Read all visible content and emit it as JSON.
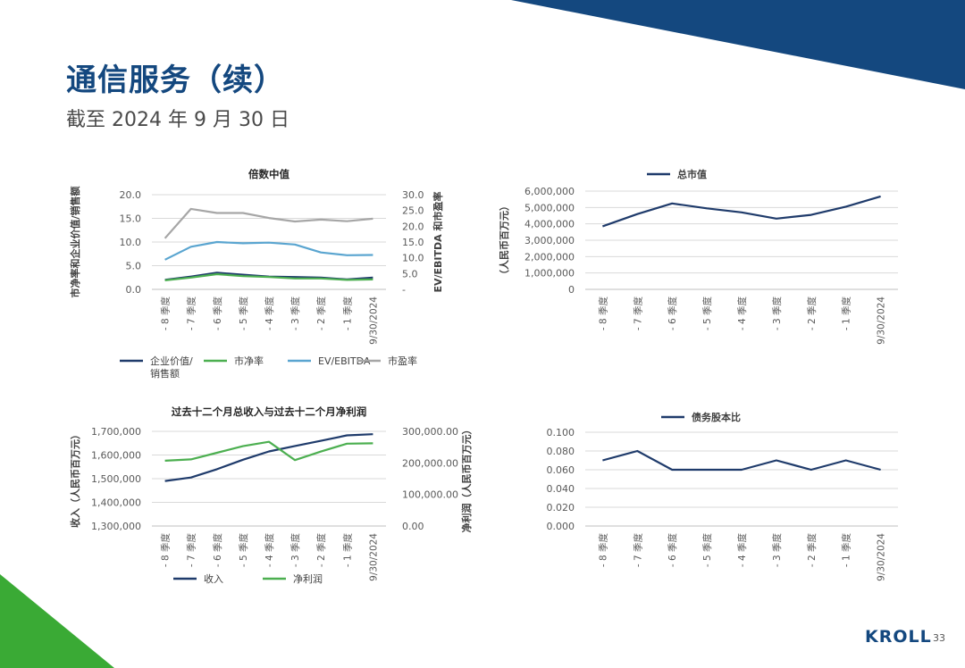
{
  "header": {
    "title": "通信服务（续）",
    "subtitle": "截至 2024 年 9 月 30 日"
  },
  "footer": {
    "logo": "KROLL",
    "page_number": "33"
  },
  "colors": {
    "brand_navy": "#14487f",
    "brand_green": "#3aaa35",
    "series_dark_navy": "#1f3b6b",
    "series_green": "#4caf50",
    "series_light_blue": "#5aa5d0",
    "series_gray": "#a6a6a6"
  },
  "chart_data": [
    {
      "type": "line",
      "title": "倍数中值",
      "categories": [
        "- 8 季度",
        "- 7 季度",
        "- 6 季度",
        "- 5 季度",
        "- 4 季度",
        "- 3 季度",
        "- 2 季度",
        "- 1 季度",
        "9/30/2024"
      ],
      "ylabel": "市净率和企业价值/销售额",
      "y2label": "EV/EBITDA 和市盈率",
      "ylim": [
        0,
        20
      ],
      "y2lim": [
        0,
        30
      ],
      "yticks": [
        "0.0",
        "5.0",
        "10.0",
        "15.0",
        "20.0"
      ],
      "y2ticks": [
        "-",
        "5.0",
        "10.0",
        "15.0",
        "20.0",
        "25.0",
        "30.0"
      ],
      "legend_position": "bottom",
      "series": [
        {
          "name": "企业价值/\n销售额",
          "axis": "left",
          "color": "#1f3b6b",
          "values": [
            2.0,
            2.7,
            3.5,
            3.1,
            2.7,
            2.6,
            2.5,
            2.1,
            2.5
          ]
        },
        {
          "name": "市净率",
          "axis": "left",
          "color": "#4caf50",
          "values": [
            1.9,
            2.5,
            3.2,
            2.8,
            2.6,
            2.3,
            2.3,
            2.0,
            2.1
          ]
        },
        {
          "name": "EV/EBITDA",
          "axis": "right",
          "color": "#5aa5d0",
          "values": [
            9.4,
            13.5,
            15.0,
            14.6,
            14.8,
            14.2,
            11.7,
            10.8,
            10.9
          ]
        },
        {
          "name": "市盈率",
          "axis": "right",
          "color": "#a6a6a6",
          "values": [
            16.2,
            25.5,
            24.2,
            24.2,
            22.6,
            21.5,
            22.1,
            21.6,
            22.4
          ]
        }
      ]
    },
    {
      "type": "line",
      "title": "",
      "categories": [
        "- 8 季度",
        "- 7 季度",
        "- 6 季度",
        "- 5 季度",
        "- 4 季度",
        "- 3 季度",
        "- 2 季度",
        "- 1 季度",
        "9/30/2024"
      ],
      "ylabel": "（人民币百万元）",
      "ylim": [
        0,
        6000000
      ],
      "yticks": [
        "0",
        "1,000,000",
        "2,000,000",
        "3,000,000",
        "4,000,000",
        "5,000,000",
        "6,000,000"
      ],
      "legend_position": "top",
      "series": [
        {
          "name": "总市值",
          "color": "#1f3b6b",
          "values": [
            3850000,
            4600000,
            5250000,
            4950000,
            4700000,
            4320000,
            4550000,
            5050000,
            5680000
          ]
        }
      ]
    },
    {
      "type": "line",
      "title": "过去十二个月总收入与过去十二个月净利润",
      "categories": [
        "- 8 季度",
        "- 7 季度",
        "- 6 季度",
        "- 5 季度",
        "- 4 季度",
        "- 3 季度",
        "- 2 季度",
        "- 1 季度",
        "9/30/2024"
      ],
      "ylabel": "收入（人民币百万元）",
      "y2label": "净利润（人民币百万元）",
      "ylim": [
        1300000,
        1700000
      ],
      "y2lim": [
        0,
        300000
      ],
      "yticks": [
        "1,300,000",
        "1,400,000",
        "1,500,000",
        "1,600,000",
        "1,700,000"
      ],
      "y2ticks": [
        "0.00",
        "100,000.00",
        "200,000.00",
        "300,000.00"
      ],
      "legend_position": "bottom",
      "series": [
        {
          "name": "收入",
          "axis": "left",
          "color": "#1f3b6b",
          "values": [
            1490000,
            1505000,
            1540000,
            1580000,
            1615000,
            1638000,
            1660000,
            1683000,
            1688000
          ]
        },
        {
          "name": "净利润",
          "axis": "right",
          "color": "#4caf50",
          "values": [
            207000,
            211000,
            232000,
            253000,
            267000,
            209000,
            236000,
            261000,
            262000
          ]
        }
      ]
    },
    {
      "type": "line",
      "title": "",
      "categories": [
        "- 8 季度",
        "- 7 季度",
        "- 6 季度",
        "- 5 季度",
        "- 4 季度",
        "- 3 季度",
        "- 2 季度",
        "- 1 季度",
        "9/30/2024"
      ],
      "ylim": [
        0,
        0.1
      ],
      "yticks": [
        "0.000",
        "0.020",
        "0.040",
        "0.060",
        "0.080",
        "0.100"
      ],
      "legend_position": "top",
      "series": [
        {
          "name": "债务股本比",
          "color": "#1f3b6b",
          "values": [
            0.07,
            0.08,
            0.06,
            0.06,
            0.06,
            0.07,
            0.06,
            0.07,
            0.06
          ]
        }
      ]
    }
  ]
}
